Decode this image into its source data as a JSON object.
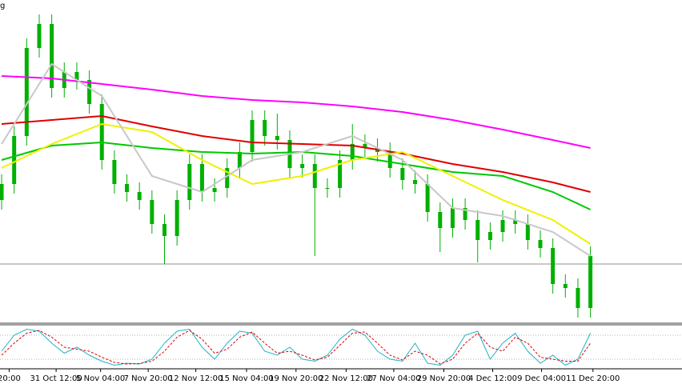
{
  "chart_data": [
    {
      "type": "candlestick",
      "title": "g",
      "color": "#00b000",
      "x": [
        0,
        1,
        2,
        3,
        4,
        5,
        6,
        7,
        8,
        9,
        10,
        11,
        12,
        13,
        14,
        15,
        16,
        17,
        18,
        19,
        20,
        21,
        22,
        23,
        24,
        25,
        26,
        27,
        28,
        29,
        30,
        31,
        32,
        33,
        34,
        35,
        36,
        37,
        38,
        39,
        40,
        41,
        42,
        43,
        44,
        45,
        46,
        47
      ],
      "open": [
        150,
        170,
        230,
        340,
        370,
        290,
        310,
        300,
        270,
        200,
        170,
        160,
        150,
        120,
        105,
        150,
        195,
        160,
        165,
        190,
        210,
        250,
        230,
        225,
        190,
        195,
        165,
        165,
        200,
        220,
        215,
        210,
        190,
        175,
        170,
        135,
        115,
        140,
        125,
        100,
        110,
        125,
        120,
        100,
        90,
        45,
        40,
        15
      ],
      "high": [
        182,
        242,
        352,
        382,
        382,
        322,
        322,
        312,
        282,
        212,
        182,
        172,
        162,
        132,
        162,
        207,
        207,
        177,
        202,
        222,
        262,
        262,
        258,
        237,
        207,
        207,
        177,
        212,
        245,
        232,
        227,
        222,
        202,
        187,
        182,
        147,
        152,
        152,
        137,
        122,
        137,
        137,
        132,
        112,
        102,
        57,
        52,
        92
      ],
      "low": [
        138,
        158,
        218,
        328,
        278,
        278,
        288,
        258,
        188,
        158,
        148,
        138,
        108,
        70,
        93,
        138,
        148,
        148,
        153,
        178,
        198,
        218,
        213,
        178,
        178,
        80,
        153,
        153,
        188,
        203,
        198,
        178,
        163,
        158,
        123,
        85,
        103,
        113,
        72,
        88,
        98,
        108,
        88,
        78,
        33,
        28,
        3,
        3
      ],
      "close": [
        170,
        230,
        340,
        370,
        290,
        310,
        300,
        270,
        200,
        170,
        160,
        150,
        120,
        105,
        150,
        195,
        160,
        165,
        190,
        210,
        250,
        230,
        225,
        190,
        195,
        165,
        165,
        200,
        220,
        215,
        210,
        190,
        175,
        170,
        135,
        115,
        140,
        125,
        100,
        110,
        125,
        120,
        100,
        90,
        45,
        40,
        15,
        80
      ],
      "overlays": [
        {
          "color": "#ff00ff",
          "x": [
            0,
            4,
            8,
            12,
            16,
            20,
            24,
            28,
            32,
            36,
            40,
            44,
            47
          ],
          "values": [
            305,
            302,
            295,
            288,
            280,
            275,
            272,
            267,
            260,
            250,
            238,
            225,
            215
          ]
        },
        {
          "color": "#e00000",
          "x": [
            0,
            4,
            8,
            12,
            16,
            20,
            24,
            28,
            32,
            36,
            40,
            44,
            47
          ],
          "values": [
            245,
            250,
            255,
            242,
            230,
            222,
            220,
            218,
            208,
            195,
            185,
            172,
            160
          ]
        },
        {
          "color": "#00c800",
          "x": [
            0,
            4,
            8,
            12,
            16,
            20,
            24,
            28,
            32,
            36,
            40,
            44,
            47
          ],
          "values": [
            200,
            218,
            222,
            215,
            210,
            208,
            210,
            205,
            195,
            185,
            180,
            160,
            138
          ]
        },
        {
          "color": "#f0f000",
          "x": [
            0,
            4,
            8,
            12,
            16,
            20,
            24,
            28,
            32,
            36,
            40,
            44,
            47
          ],
          "values": [
            190,
            220,
            245,
            235,
            200,
            170,
            180,
            200,
            210,
            180,
            150,
            125,
            95
          ]
        },
        {
          "color": "#c8c8c8",
          "x": [
            0,
            4,
            8,
            12,
            16,
            20,
            24,
            28,
            32,
            36,
            40,
            44,
            47
          ],
          "values": [
            220,
            320,
            280,
            180,
            160,
            200,
            210,
            230,
            200,
            140,
            130,
            110,
            80
          ]
        }
      ],
      "hline": 70,
      "hline_color": "#909090",
      "xlim": [
        -0.13,
        54.31
      ],
      "ylim": [
        0,
        400
      ]
    },
    {
      "type": "line",
      "x": [
        0,
        1,
        2,
        3,
        4,
        5,
        6,
        7,
        8,
        9,
        10,
        11,
        12,
        13,
        14,
        15,
        16,
        17,
        18,
        19,
        20,
        21,
        22,
        23,
        24,
        25,
        26,
        27,
        28,
        29,
        30,
        31,
        32,
        33,
        34,
        35,
        36,
        37,
        38,
        39,
        40,
        41,
        42,
        43,
        44,
        45,
        46,
        47
      ],
      "series": [
        {
          "color": "#20b2c8",
          "dashed": false,
          "values": [
            40,
            80,
            95,
            90,
            60,
            35,
            50,
            30,
            15,
            5,
            10,
            8,
            20,
            60,
            90,
            95,
            50,
            20,
            60,
            90,
            85,
            40,
            30,
            50,
            20,
            15,
            30,
            70,
            95,
            80,
            40,
            20,
            15,
            60,
            10,
            5,
            30,
            80,
            90,
            20,
            60,
            85,
            40,
            10,
            30,
            5,
            20,
            85
          ]
        },
        {
          "color": "#e00000",
          "dashed": true,
          "values": [
            30,
            60,
            85,
            92,
            75,
            50,
            45,
            40,
            25,
            12,
            8,
            9,
            15,
            40,
            75,
            92,
            70,
            35,
            45,
            75,
            88,
            60,
            35,
            40,
            30,
            18,
            25,
            55,
            85,
            88,
            60,
            30,
            18,
            40,
            30,
            8,
            20,
            60,
            85,
            50,
            40,
            75,
            60,
            25,
            20,
            15,
            15,
            60
          ]
        }
      ],
      "levels": [
        80,
        20
      ],
      "xlim": [
        -0.13,
        54.31
      ],
      "ylim": [
        0,
        100
      ],
      "xticks": [
        {
          "value": 0.6,
          "label": "20:00"
        },
        {
          "value": 4.35,
          "label": "31 Oct 12:00"
        },
        {
          "value": 7.9,
          "label": "5 Nov 04:00"
        },
        {
          "value": 11.7,
          "label": "7 Nov 20:00"
        },
        {
          "value": 15.5,
          "label": "12 Nov 12:00"
        },
        {
          "value": 19.55,
          "label": "15 Nov 04:00"
        },
        {
          "value": 23.5,
          "label": "19 Nov 20:00"
        },
        {
          "value": 27.5,
          "label": "22 Nov 12:00"
        },
        {
          "value": 31.3,
          "label": "27 Nov 04:00"
        },
        {
          "value": 35.3,
          "label": "29 Nov 20:00"
        },
        {
          "value": 39.2,
          "label": "4 Dec 12:00"
        },
        {
          "value": 43.1,
          "label": "9 Dec 04:00"
        },
        {
          "value": 47.2,
          "label": "11 Dec 20:00"
        }
      ]
    }
  ]
}
